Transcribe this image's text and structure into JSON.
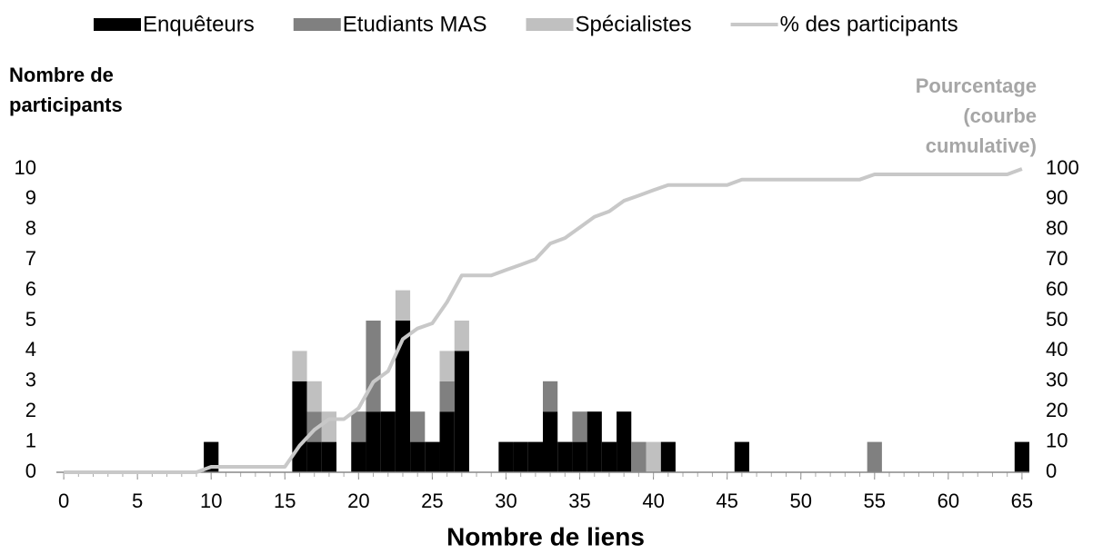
{
  "chart_data": {
    "type": "bar",
    "stacked": true,
    "x_label": "Nombre de liens",
    "y_label": "Nombre de participants",
    "y2_label": "Pourcentage (courbe cumulative)",
    "x": [
      0,
      1,
      2,
      3,
      4,
      5,
      6,
      7,
      8,
      9,
      10,
      11,
      12,
      13,
      14,
      15,
      16,
      17,
      18,
      19,
      20,
      21,
      22,
      23,
      24,
      25,
      26,
      27,
      28,
      29,
      30,
      31,
      32,
      33,
      34,
      35,
      36,
      37,
      38,
      39,
      40,
      41,
      42,
      43,
      44,
      45,
      46,
      47,
      48,
      49,
      50,
      51,
      52,
      53,
      54,
      55,
      56,
      57,
      58,
      59,
      60,
      61,
      62,
      63,
      64,
      65
    ],
    "xlim": [
      -0.5,
      65.5
    ],
    "xticks": [
      0,
      5,
      10,
      15,
      20,
      25,
      30,
      35,
      40,
      45,
      50,
      55,
      60,
      65
    ],
    "ylim": [
      0,
      10
    ],
    "yticks": [
      0,
      1,
      2,
      3,
      4,
      5,
      6,
      7,
      8,
      9,
      10
    ],
    "y2lim": [
      0,
      100
    ],
    "y2ticks": [
      0,
      10,
      20,
      30,
      40,
      50,
      60,
      70,
      80,
      90,
      100
    ],
    "legend": "top",
    "series": [
      {
        "name": "Enquêteurs",
        "color": "#000000",
        "values": [
          0,
          0,
          0,
          0,
          0,
          0,
          0,
          0,
          0,
          0,
          1,
          0,
          0,
          0,
          0,
          0,
          3,
          1,
          1,
          0,
          1,
          2,
          2,
          5,
          1,
          1,
          2,
          4,
          0,
          0,
          1,
          1,
          1,
          2,
          1,
          1,
          2,
          1,
          2,
          0,
          0,
          1,
          0,
          0,
          0,
          0,
          1,
          0,
          0,
          0,
          0,
          0,
          0,
          0,
          0,
          0,
          0,
          0,
          0,
          0,
          0,
          0,
          0,
          0,
          0,
          1
        ]
      },
      {
        "name": "Etudiants MAS",
        "color": "#808080",
        "values": [
          0,
          0,
          0,
          0,
          0,
          0,
          0,
          0,
          0,
          0,
          0,
          0,
          0,
          0,
          0,
          0,
          0,
          1,
          0,
          0,
          1,
          3,
          0,
          0,
          1,
          0,
          1,
          0,
          0,
          0,
          0,
          0,
          0,
          1,
          0,
          1,
          0,
          0,
          0,
          1,
          0,
          0,
          0,
          0,
          0,
          0,
          0,
          0,
          0,
          0,
          0,
          0,
          0,
          0,
          0,
          1,
          0,
          0,
          0,
          0,
          0,
          0,
          0,
          0,
          0,
          0
        ]
      },
      {
        "name": "Spécialistes",
        "color": "#c0c0c0",
        "values": [
          0,
          0,
          0,
          0,
          0,
          0,
          0,
          0,
          0,
          0,
          0,
          0,
          0,
          0,
          0,
          0,
          1,
          1,
          1,
          0,
          0,
          0,
          0,
          1,
          0,
          0,
          1,
          1,
          0,
          0,
          0,
          0,
          0,
          0,
          0,
          0,
          0,
          0,
          0,
          0,
          1,
          0,
          0,
          0,
          0,
          0,
          0,
          0,
          0,
          0,
          0,
          0,
          0,
          0,
          0,
          0,
          0,
          0,
          0,
          0,
          0,
          0,
          0,
          0,
          0,
          0
        ]
      },
      {
        "name": "% des participants",
        "color": "#c8c8c8",
        "type": "line",
        "axis": "y2",
        "values": [
          0,
          0,
          0,
          0,
          0,
          0,
          0,
          0,
          0,
          0,
          1.8,
          1.8,
          1.8,
          1.8,
          1.8,
          1.8,
          8.8,
          14.0,
          17.5,
          17.5,
          21.1,
          29.8,
          33.3,
          43.9,
          47.4,
          49.1,
          56.1,
          64.9,
          64.9,
          64.9,
          66.7,
          68.4,
          70.2,
          75.4,
          77.2,
          80.7,
          84.2,
          86.0,
          89.5,
          91.2,
          93.0,
          94.7,
          94.7,
          94.7,
          94.7,
          94.7,
          96.5,
          96.5,
          96.5,
          96.5,
          96.5,
          96.5,
          96.5,
          96.5,
          96.5,
          98.2,
          98.2,
          98.2,
          98.2,
          98.2,
          98.2,
          98.2,
          98.2,
          98.2,
          98.2,
          100
        ]
      }
    ]
  }
}
